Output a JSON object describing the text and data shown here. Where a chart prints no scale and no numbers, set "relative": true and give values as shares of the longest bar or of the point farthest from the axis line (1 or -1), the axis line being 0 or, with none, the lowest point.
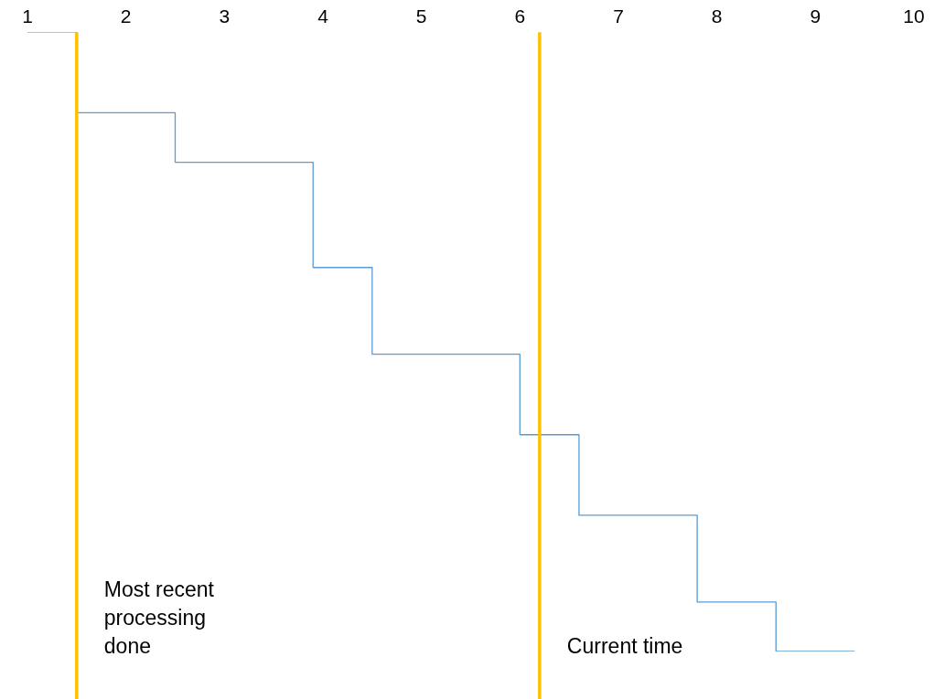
{
  "chart_data": {
    "type": "step",
    "relative": true,
    "color": "#5b9bd5",
    "x": [
      1,
      1.5,
      2.5,
      3.9,
      4.5,
      6.0,
      6.6,
      7.8,
      8.6,
      9.4
    ],
    "values": [
      1,
      0.87,
      0.79,
      0.62,
      0.48,
      0.35,
      0.22,
      0.08,
      0,
      0
    ],
    "xlim": [
      1,
      10
    ],
    "xticks": [
      1,
      2,
      3,
      4,
      5,
      6,
      7,
      8,
      9,
      10
    ],
    "tick_labels": "x",
    "grid": false,
    "legend": false,
    "ref_lines": [
      {
        "axis": "x",
        "value": 1.5,
        "label": "Most recent processing done",
        "color": "#ffc000"
      },
      {
        "axis": "x",
        "value": 6.2,
        "label": "Current time",
        "color": "#ffc000"
      }
    ]
  }
}
